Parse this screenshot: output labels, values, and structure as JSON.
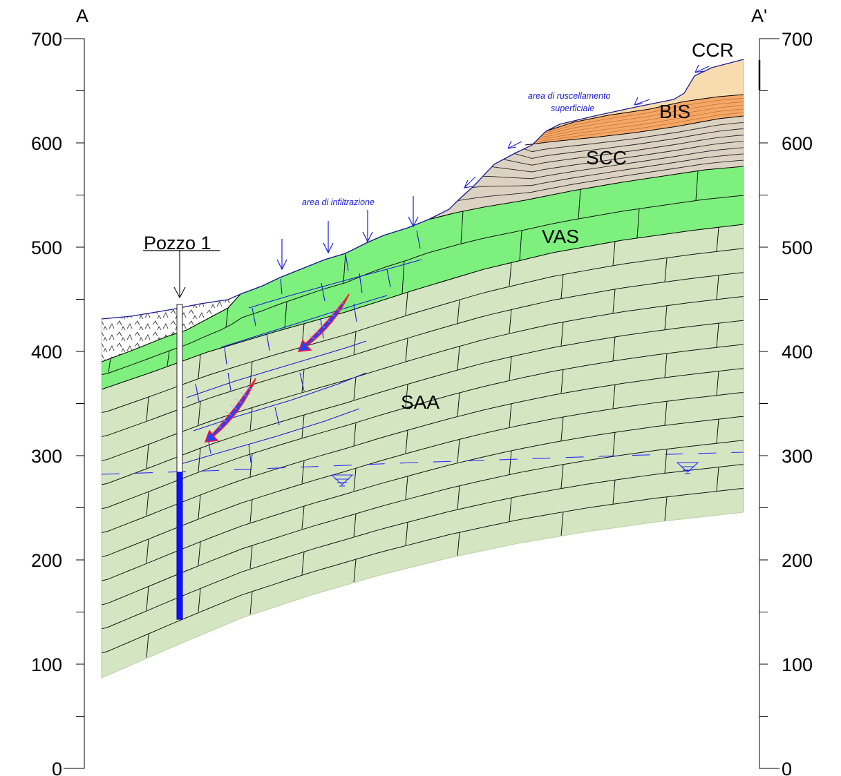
{
  "section": {
    "left_label": "A",
    "right_label": "A'",
    "axis_ticks": [
      "0",
      "100",
      "200",
      "300",
      "400",
      "500",
      "600",
      "700"
    ]
  },
  "units": {
    "ccr": "CCR",
    "bis": "BIS",
    "scc": "SCC",
    "vas": "VAS",
    "saa": "SAA"
  },
  "well": {
    "label": "Pozzo 1"
  },
  "annotations": {
    "infiltration": "area di infiltrazione",
    "runoff_line1": "area di ruscellamento",
    "runoff_line2": "superficiale"
  },
  "colors": {
    "ccr": "#f8dcb0",
    "bis": "#f5a766",
    "scc": "#dbd2c2",
    "vas": "#7df07d",
    "saa": "#d3e6c1",
    "water": "#1010ff"
  }
}
